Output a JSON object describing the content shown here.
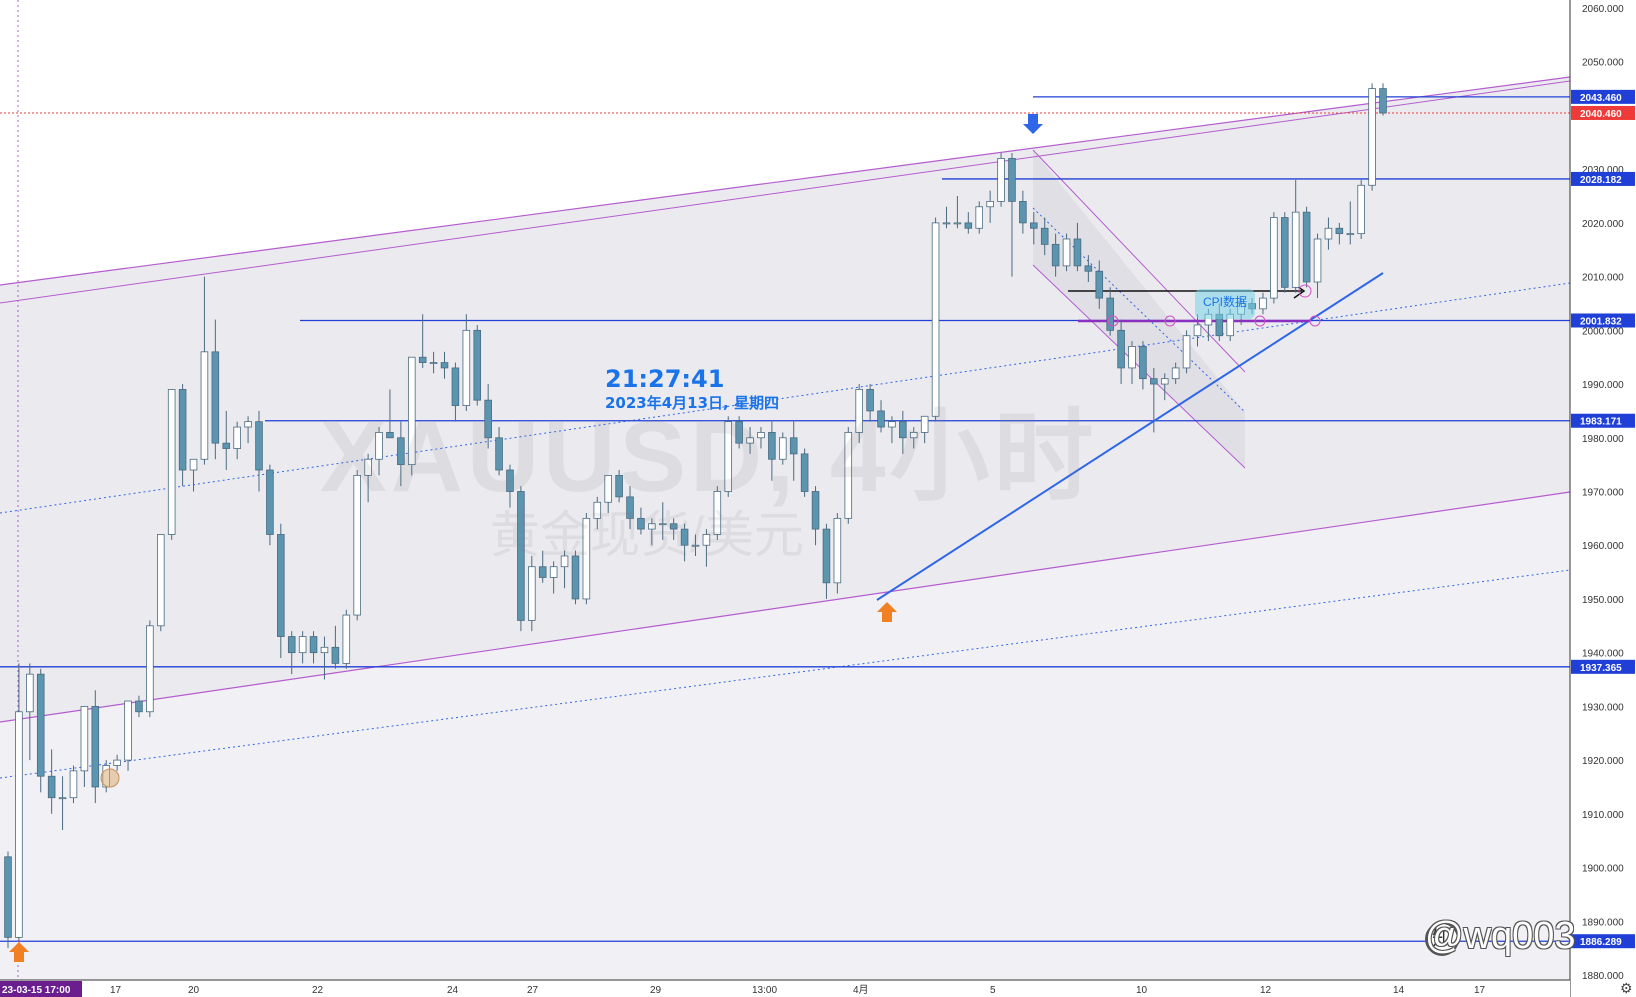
{
  "chart_data": {
    "type": "candlestick",
    "symbol": "XAUUSD, 4小时",
    "instrument_name": "黄金现货/美元",
    "clock_time": "21:27:41",
    "clock_date": "2023年4月13日, 星期四",
    "ylim": [
      1878,
      2062
    ],
    "y_ticks": [
      1880.0,
      1890.0,
      1900.0,
      1910.0,
      1920.0,
      1930.0,
      1940.0,
      1950.0,
      1960.0,
      1970.0,
      1980.0,
      1990.0,
      2000.0,
      2010.0,
      2020.0,
      2030.0,
      2040.0,
      2050.0,
      2060.0
    ],
    "x_labels": [
      "23-03-15  17:00",
      "17",
      "20",
      "22",
      "24",
      "27",
      "29",
      "13:00",
      "4月",
      "5",
      "10",
      "12",
      "14",
      "17"
    ],
    "price_badges": [
      {
        "value": "2043.460",
        "color": "#1f3fd6"
      },
      {
        "value": "2040.460",
        "color": "#ef3a3a"
      },
      {
        "value": "2028.182",
        "color": "#1f3fd6"
      },
      {
        "value": "2001.832",
        "color": "#1f3fd6"
      },
      {
        "value": "1983.171",
        "color": "#1f3fd6"
      },
      {
        "value": "1937.365",
        "color": "#1f3fd6"
      },
      {
        "value": "1886.289",
        "color": "#1f3fd6"
      }
    ],
    "annotation": "CPI数据",
    "credit": "@wq003",
    "colors": {
      "up": "#ffffff",
      "down": "#5b95b0",
      "wick": "#4a6a80",
      "level": "#1f3fd6",
      "channel": "#b55ccf",
      "trend": "#2f66e8",
      "last": "#ef3a3a"
    },
    "candles": [
      {
        "o": 1902,
        "h": 1903,
        "l": 1885,
        "c": 1887
      },
      {
        "o": 1887,
        "h": 1938,
        "l": 1884,
        "c": 1929
      },
      {
        "o": 1929,
        "h": 1938,
        "l": 1920,
        "c": 1936
      },
      {
        "o": 1936,
        "h": 1937,
        "l": 1914,
        "c": 1917
      },
      {
        "o": 1917,
        "h": 1922,
        "l": 1910,
        "c": 1913
      },
      {
        "o": 1913,
        "h": 1917,
        "l": 1907,
        "c": 1913
      },
      {
        "o": 1913,
        "h": 1919,
        "l": 1912,
        "c": 1918
      },
      {
        "o": 1918,
        "h": 1930,
        "l": 1915,
        "c": 1930
      },
      {
        "o": 1930,
        "h": 1933,
        "l": 1912,
        "c": 1915
      },
      {
        "o": 1915,
        "h": 1920,
        "l": 1914,
        "c": 1919
      },
      {
        "o": 1919,
        "h": 1921,
        "l": 1918,
        "c": 1920
      },
      {
        "o": 1920,
        "h": 1931,
        "l": 1918,
        "c": 1931
      },
      {
        "o": 1931,
        "h": 1932,
        "l": 1928,
        "c": 1929
      },
      {
        "o": 1929,
        "h": 1946,
        "l": 1928,
        "c": 1945
      },
      {
        "o": 1945,
        "h": 1962,
        "l": 1944,
        "c": 1962
      },
      {
        "o": 1962,
        "h": 1989,
        "l": 1961,
        "c": 1989
      },
      {
        "o": 1989,
        "h": 1990,
        "l": 1971,
        "c": 1974
      },
      {
        "o": 1974,
        "h": 1976,
        "l": 1970,
        "c": 1976
      },
      {
        "o": 1976,
        "h": 2010,
        "l": 1975,
        "c": 1996
      },
      {
        "o": 1996,
        "h": 2002,
        "l": 1976,
        "c": 1979
      },
      {
        "o": 1979,
        "h": 1985,
        "l": 1974,
        "c": 1978
      },
      {
        "o": 1978,
        "h": 1983,
        "l": 1976,
        "c": 1982
      },
      {
        "o": 1982,
        "h": 1984,
        "l": 1979,
        "c": 1983
      },
      {
        "o": 1983,
        "h": 1985,
        "l": 1970,
        "c": 1974
      },
      {
        "o": 1974,
        "h": 1975,
        "l": 1960,
        "c": 1962
      },
      {
        "o": 1962,
        "h": 1964,
        "l": 1939,
        "c": 1943
      },
      {
        "o": 1943,
        "h": 1944,
        "l": 1936,
        "c": 1940
      },
      {
        "o": 1940,
        "h": 1944,
        "l": 1938,
        "c": 1943
      },
      {
        "o": 1943,
        "h": 1944,
        "l": 1938,
        "c": 1940
      },
      {
        "o": 1940,
        "h": 1943,
        "l": 1935,
        "c": 1941
      },
      {
        "o": 1941,
        "h": 1945,
        "l": 1937,
        "c": 1938
      },
      {
        "o": 1938,
        "h": 1948,
        "l": 1937,
        "c": 1947
      },
      {
        "o": 1947,
        "h": 1974,
        "l": 1946,
        "c": 1973
      },
      {
        "o": 1973,
        "h": 1977,
        "l": 1968,
        "c": 1976
      },
      {
        "o": 1976,
        "h": 1982,
        "l": 1973,
        "c": 1981
      },
      {
        "o": 1981,
        "h": 1989,
        "l": 1980,
        "c": 1980
      },
      {
        "o": 1980,
        "h": 1983,
        "l": 1971,
        "c": 1975
      },
      {
        "o": 1975,
        "h": 1995,
        "l": 1973,
        "c": 1995
      },
      {
        "o": 1995,
        "h": 2003,
        "l": 1993,
        "c": 1994
      },
      {
        "o": 1994,
        "h": 1996,
        "l": 1992,
        "c": 1994
      },
      {
        "o": 1994,
        "h": 1996,
        "l": 1991,
        "c": 1993
      },
      {
        "o": 1993,
        "h": 1994,
        "l": 1983,
        "c": 1986
      },
      {
        "o": 1986,
        "h": 2003,
        "l": 1985,
        "c": 2000
      },
      {
        "o": 2000,
        "h": 2001,
        "l": 1986,
        "c": 1987
      },
      {
        "o": 1987,
        "h": 1990,
        "l": 1978,
        "c": 1980
      },
      {
        "o": 1980,
        "h": 1982,
        "l": 1973,
        "c": 1974
      },
      {
        "o": 1974,
        "h": 1975,
        "l": 1967,
        "c": 1970
      },
      {
        "o": 1970,
        "h": 1971,
        "l": 1944,
        "c": 1946
      },
      {
        "o": 1946,
        "h": 1958,
        "l": 1944,
        "c": 1956
      },
      {
        "o": 1956,
        "h": 1959,
        "l": 1953,
        "c": 1954
      },
      {
        "o": 1954,
        "h": 1957,
        "l": 1951,
        "c": 1956
      },
      {
        "o": 1956,
        "h": 1959,
        "l": 1952,
        "c": 1958
      },
      {
        "o": 1958,
        "h": 1959,
        "l": 1949,
        "c": 1950
      },
      {
        "o": 1950,
        "h": 1966,
        "l": 1949,
        "c": 1965
      },
      {
        "o": 1965,
        "h": 1969,
        "l": 1963,
        "c": 1968
      },
      {
        "o": 1968,
        "h": 1973,
        "l": 1966,
        "c": 1973
      },
      {
        "o": 1973,
        "h": 1974,
        "l": 1968,
        "c": 1969
      },
      {
        "o": 1969,
        "h": 1971,
        "l": 1963,
        "c": 1965
      },
      {
        "o": 1965,
        "h": 1967,
        "l": 1962,
        "c": 1963
      },
      {
        "o": 1963,
        "h": 1965,
        "l": 1960,
        "c": 1964
      },
      {
        "o": 1964,
        "h": 1968,
        "l": 1961,
        "c": 1964
      },
      {
        "o": 1964,
        "h": 1965,
        "l": 1961,
        "c": 1963
      },
      {
        "o": 1963,
        "h": 1964,
        "l": 1957,
        "c": 1960
      },
      {
        "o": 1960,
        "h": 1962,
        "l": 1958,
        "c": 1960
      },
      {
        "o": 1960,
        "h": 1963,
        "l": 1956,
        "c": 1962
      },
      {
        "o": 1962,
        "h": 1971,
        "l": 1961,
        "c": 1970
      },
      {
        "o": 1970,
        "h": 1984,
        "l": 1969,
        "c": 1983
      },
      {
        "o": 1983,
        "h": 1984,
        "l": 1978,
        "c": 1979
      },
      {
        "o": 1979,
        "h": 1982,
        "l": 1977,
        "c": 1980
      },
      {
        "o": 1980,
        "h": 1982,
        "l": 1978,
        "c": 1981
      },
      {
        "o": 1981,
        "h": 1983,
        "l": 1972,
        "c": 1976
      },
      {
        "o": 1976,
        "h": 1981,
        "l": 1975,
        "c": 1980
      },
      {
        "o": 1980,
        "h": 1983,
        "l": 1972,
        "c": 1977
      },
      {
        "o": 1977,
        "h": 1978,
        "l": 1969,
        "c": 1970
      },
      {
        "o": 1970,
        "h": 1971,
        "l": 1960,
        "c": 1963
      },
      {
        "o": 1963,
        "h": 1964,
        "l": 1950,
        "c": 1953
      },
      {
        "o": 1953,
        "h": 1966,
        "l": 1951,
        "c": 1965
      },
      {
        "o": 1965,
        "h": 1982,
        "l": 1964,
        "c": 1981
      },
      {
        "o": 1981,
        "h": 1990,
        "l": 1979,
        "c": 1989
      },
      {
        "o": 1989,
        "h": 1990,
        "l": 1983,
        "c": 1985
      },
      {
        "o": 1985,
        "h": 1987,
        "l": 1981,
        "c": 1982
      },
      {
        "o": 1982,
        "h": 1984,
        "l": 1979,
        "c": 1983
      },
      {
        "o": 1983,
        "h": 1985,
        "l": 1977,
        "c": 1980
      },
      {
        "o": 1980,
        "h": 1982,
        "l": 1978,
        "c": 1981
      },
      {
        "o": 1981,
        "h": 1984,
        "l": 1979,
        "c": 1984
      },
      {
        "o": 1984,
        "h": 2021,
        "l": 1983,
        "c": 2020
      },
      {
        "o": 2020,
        "h": 2023,
        "l": 2019,
        "c": 2020
      },
      {
        "o": 2020,
        "h": 2025,
        "l": 2019,
        "c": 2020
      },
      {
        "o": 2020,
        "h": 2022,
        "l": 2018,
        "c": 2019
      },
      {
        "o": 2019,
        "h": 2024,
        "l": 2018,
        "c": 2023
      },
      {
        "o": 2023,
        "h": 2026,
        "l": 2020,
        "c": 2024
      },
      {
        "o": 2024,
        "h": 2033,
        "l": 2023,
        "c": 2032
      },
      {
        "o": 2032,
        "h": 2033,
        "l": 2010,
        "c": 2024
      },
      {
        "o": 2024,
        "h": 2026,
        "l": 2018,
        "c": 2020
      },
      {
        "o": 2020,
        "h": 2022,
        "l": 2016,
        "c": 2019
      },
      {
        "o": 2019,
        "h": 2021,
        "l": 2014,
        "c": 2016
      },
      {
        "o": 2016,
        "h": 2018,
        "l": 2010,
        "c": 2012
      },
      {
        "o": 2012,
        "h": 2018,
        "l": 2011,
        "c": 2017
      },
      {
        "o": 2017,
        "h": 2020,
        "l": 2011,
        "c": 2012
      },
      {
        "o": 2012,
        "h": 2014,
        "l": 2009,
        "c": 2011
      },
      {
        "o": 2011,
        "h": 2013,
        "l": 2004,
        "c": 2006
      },
      {
        "o": 2006,
        "h": 2008,
        "l": 1999,
        "c": 2000
      },
      {
        "o": 2000,
        "h": 2002,
        "l": 1990,
        "c": 1993
      },
      {
        "o": 1993,
        "h": 1998,
        "l": 1990,
        "c": 1997
      },
      {
        "o": 1997,
        "h": 1998,
        "l": 1989,
        "c": 1991
      },
      {
        "o": 1991,
        "h": 1993,
        "l": 1981,
        "c": 1990
      },
      {
        "o": 1990,
        "h": 1992,
        "l": 1987,
        "c": 1991
      },
      {
        "o": 1991,
        "h": 1994,
        "l": 1990,
        "c": 1993
      },
      {
        "o": 1993,
        "h": 2000,
        "l": 1992,
        "c": 1999
      },
      {
        "o": 1999,
        "h": 2003,
        "l": 1997,
        "c": 2001
      },
      {
        "o": 2001,
        "h": 2004,
        "l": 1998,
        "c": 2003
      },
      {
        "o": 2003,
        "h": 2005,
        "l": 1998,
        "c": 1999
      },
      {
        "o": 1999,
        "h": 2004,
        "l": 1998,
        "c": 2003
      },
      {
        "o": 2003,
        "h": 2006,
        "l": 2001,
        "c": 2005
      },
      {
        "o": 2005,
        "h": 2006,
        "l": 2003,
        "c": 2004
      },
      {
        "o": 2004,
        "h": 2007,
        "l": 2003,
        "c": 2006
      },
      {
        "o": 2006,
        "h": 2022,
        "l": 2005,
        "c": 2021
      },
      {
        "o": 2021,
        "h": 2022,
        "l": 2007,
        "c": 2008
      },
      {
        "o": 2008,
        "h": 2028,
        "l": 2007,
        "c": 2022
      },
      {
        "o": 2022,
        "h": 2023,
        "l": 2008,
        "c": 2009
      },
      {
        "o": 2009,
        "h": 2018,
        "l": 2006,
        "c": 2017
      },
      {
        "o": 2017,
        "h": 2021,
        "l": 2015,
        "c": 2019
      },
      {
        "o": 2019,
        "h": 2020,
        "l": 2016,
        "c": 2018
      },
      {
        "o": 2018,
        "h": 2024,
        "l": 2016,
        "c": 2018
      },
      {
        "o": 2018,
        "h": 2028,
        "l": 2017,
        "c": 2027
      },
      {
        "o": 2027,
        "h": 2046,
        "l": 2026,
        "c": 2045
      },
      {
        "o": 2045,
        "h": 2046,
        "l": 2040,
        "c": 2040.46
      }
    ]
  }
}
